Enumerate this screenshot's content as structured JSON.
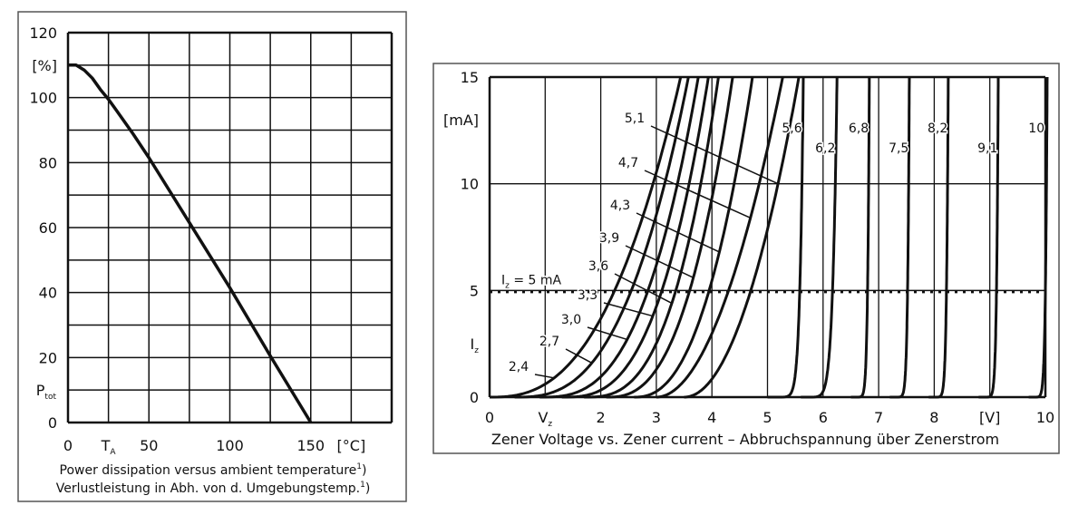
{
  "chart_data": [
    {
      "type": "line",
      "xlim": [
        0,
        200
      ],
      "ylim": [
        0,
        120
      ],
      "grid": true,
      "x_grid_step": 25,
      "y_grid_step": 10,
      "x_ticks": [
        {
          "value": 0,
          "label": "0"
        },
        {
          "value": 25,
          "label": "T",
          "sub": "A"
        },
        {
          "value": 50,
          "label": "50"
        },
        {
          "value": 100,
          "label": "100"
        },
        {
          "value": 150,
          "label": "150"
        },
        {
          "value": 175,
          "label": "[°C]"
        }
      ],
      "y_ticks": [
        {
          "value": 120,
          "label": "120"
        },
        {
          "value": 110,
          "label": "[%]"
        },
        {
          "value": 100,
          "label": "100"
        },
        {
          "value": 80,
          "label": "80"
        },
        {
          "value": 60,
          "label": "60"
        },
        {
          "value": 40,
          "label": "40"
        },
        {
          "value": 20,
          "label": "20"
        },
        {
          "value": 10,
          "label": "P",
          "sub": "tot"
        },
        {
          "value": 0,
          "label": "0"
        }
      ],
      "series": [
        {
          "x": [
            0,
            5,
            10,
            15,
            20,
            25,
            30,
            40,
            50,
            75,
            100,
            125,
            150
          ],
          "y": [
            110,
            110,
            108.5,
            106,
            102.5,
            99.5,
            96,
            89,
            81.5,
            61.5,
            41.5,
            20.5,
            0
          ]
        }
      ],
      "caption": [
        {
          "text": "Power dissipation versus ambient temperature",
          "footnote": "1",
          "close": ")"
        },
        {
          "text": "Verlustleistung in Abh. von d. Umgebungstemp.",
          "footnote": "1",
          "close": ")"
        }
      ]
    },
    {
      "type": "line",
      "xlim": [
        0,
        10
      ],
      "ylim": [
        0,
        15
      ],
      "grid": true,
      "x_ticks": [
        {
          "value": 0,
          "label": "0"
        },
        {
          "value": 1,
          "label": "V",
          "sub": "z"
        },
        {
          "value": 2,
          "label": "2"
        },
        {
          "value": 3,
          "label": "3"
        },
        {
          "value": 4,
          "label": "4"
        },
        {
          "value": 5,
          "label": "5"
        },
        {
          "value": 6,
          "label": "6"
        },
        {
          "value": 7,
          "label": "7"
        },
        {
          "value": 8,
          "label": "8"
        },
        {
          "value": 9,
          "label": "[V]"
        },
        {
          "value": 10,
          "label": "10"
        }
      ],
      "y_ticks": [
        {
          "value": 15,
          "label": "15"
        },
        {
          "value": 13,
          "label": "[mA]"
        },
        {
          "value": 10,
          "label": "10"
        },
        {
          "value": 5,
          "label": "5"
        },
        {
          "value": 2.5,
          "label": "I",
          "sub": "z"
        },
        {
          "value": 0,
          "label": "0"
        }
      ],
      "reference_line": {
        "y": 5,
        "label": "I",
        "sub": "z",
        "label_rest": " = 5 mA",
        "style": "dotted"
      },
      "xlabel": "Zener Voltage vs. Zener current – Abbruchspannung über Zenerstrom",
      "series": [
        {
          "name": "2,4",
          "points": [
            [
              0,
              0
            ],
            [
              2.25,
              5
            ],
            [
              2.94,
              10
            ]
          ]
        },
        {
          "name": "2,7",
          "points": [
            [
              0.45,
              0
            ],
            [
              2.55,
              5
            ],
            [
              3.15,
              10
            ]
          ]
        },
        {
          "name": "3,0",
          "points": [
            [
              0.9,
              0
            ],
            [
              2.85,
              5
            ],
            [
              3.38,
              10
            ]
          ]
        },
        {
          "name": "3,3",
          "points": [
            [
              1.3,
              0
            ],
            [
              3.1,
              5
            ],
            [
              3.59,
              10
            ]
          ]
        },
        {
          "name": "3,6",
          "points": [
            [
              1.7,
              0
            ],
            [
              3.35,
              5
            ],
            [
              3.8,
              10
            ]
          ]
        },
        {
          "name": "3,9",
          "points": [
            [
              2.1,
              0
            ],
            [
              3.6,
              5
            ],
            [
              4.05,
              10
            ]
          ]
        },
        {
          "name": "4,3",
          "points": [
            [
              2.6,
              0
            ],
            [
              3.95,
              5
            ],
            [
              4.4,
              10
            ]
          ]
        },
        {
          "name": "4,7",
          "points": [
            [
              3.0,
              0
            ],
            [
              4.3,
              5
            ],
            [
              4.85,
              10
            ]
          ]
        },
        {
          "name": "5,1",
          "points": [
            [
              3.5,
              0
            ],
            [
              4.7,
              5
            ],
            [
              5.19,
              10
            ]
          ]
        },
        {
          "name": "5,6",
          "points": [
            [
              5.0,
              0
            ],
            [
              5.58,
              5
            ],
            [
              5.62,
              10
            ]
          ]
        },
        {
          "name": "6,2",
          "points": [
            [
              5.6,
              0
            ],
            [
              6.17,
              5
            ],
            [
              6.22,
              10
            ]
          ]
        },
        {
          "name": "6,8",
          "points": [
            [
              6.5,
              0
            ],
            [
              6.8,
              5
            ],
            [
              6.82,
              10
            ]
          ]
        },
        {
          "name": "7,5",
          "points": [
            [
              7.2,
              0
            ],
            [
              7.52,
              5
            ],
            [
              7.54,
              10
            ]
          ]
        },
        {
          "name": "8,2",
          "points": [
            [
              7.9,
              0
            ],
            [
              8.22,
              5
            ],
            [
              8.24,
              10
            ]
          ]
        },
        {
          "name": "9,1",
          "points": [
            [
              8.8,
              0
            ],
            [
              9.12,
              5
            ],
            [
              9.14,
              10
            ]
          ]
        },
        {
          "name": "10",
          "points": [
            [
              9.7,
              0
            ],
            [
              10.0,
              5
            ],
            [
              10.02,
              10
            ]
          ]
        }
      ]
    }
  ]
}
